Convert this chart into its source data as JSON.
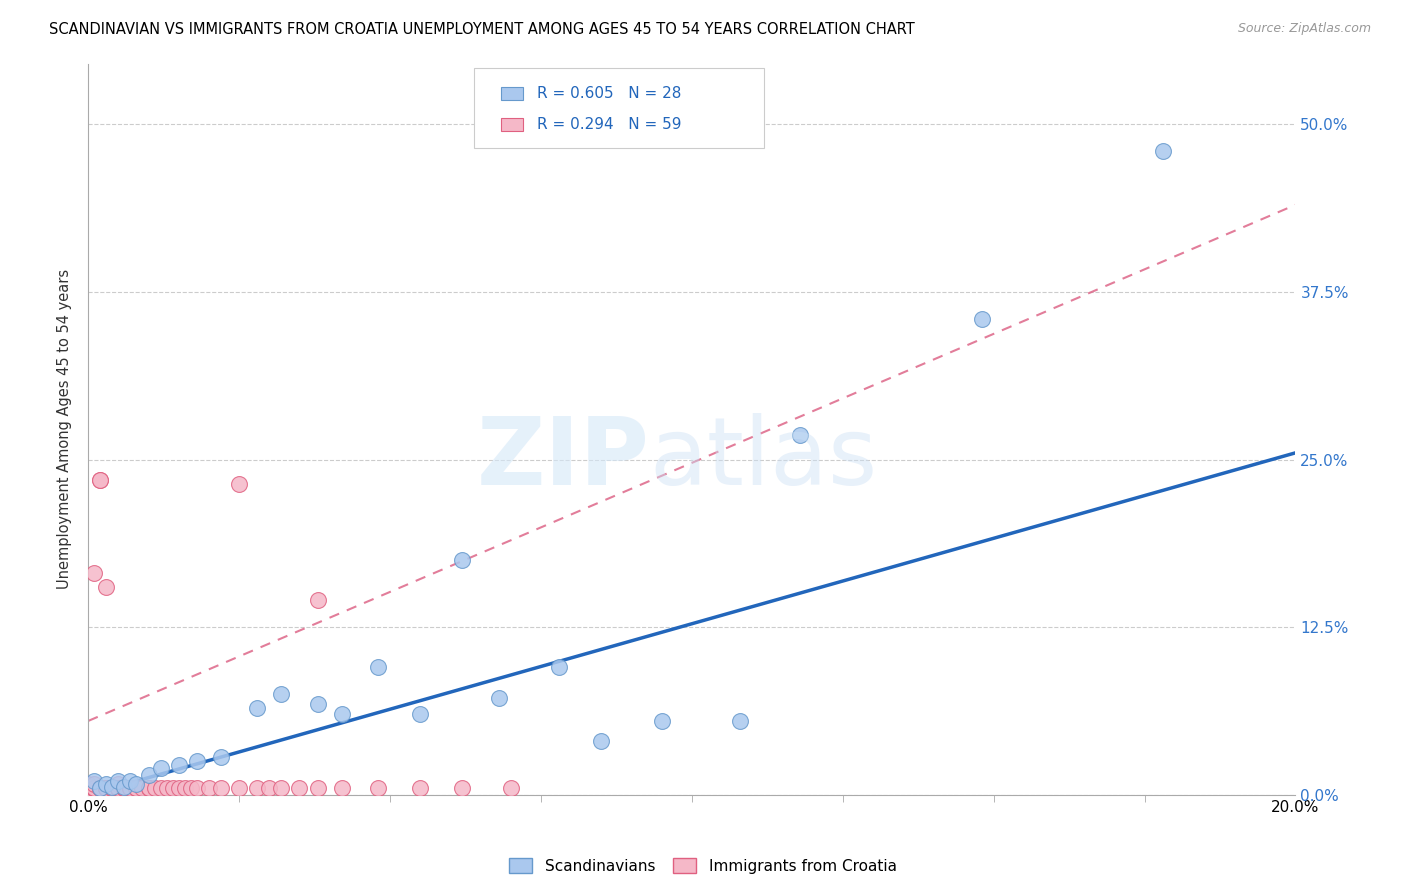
{
  "title": "SCANDINAVIAN VS IMMIGRANTS FROM CROATIA UNEMPLOYMENT AMONG AGES 45 TO 54 YEARS CORRELATION CHART",
  "source": "Source: ZipAtlas.com",
  "ylabel": "Unemployment Among Ages 45 to 54 years",
  "ytick_labels": [
    "0.0%",
    "12.5%",
    "25.0%",
    "37.5%",
    "50.0%"
  ],
  "ytick_values": [
    0.0,
    0.125,
    0.25,
    0.375,
    0.5
  ],
  "xlim": [
    0.0,
    0.2
  ],
  "ylim": [
    0.0,
    0.545
  ],
  "legend_scandinavians": "Scandinavians",
  "legend_croatia": "Immigrants from Croatia",
  "R_scand": "R = 0.605",
  "N_scand": "N = 28",
  "R_croatia": "R = 0.294",
  "N_croatia": "N = 59",
  "scand_color": "#aac8ee",
  "scand_edge_color": "#6699cc",
  "croatia_color": "#f5b8c8",
  "croatia_edge_color": "#e06080",
  "trendline_scand_color": "#2266bb",
  "trendline_croatia_color": "#dd6688",
  "trendline_scand_x0": 0.0,
  "trendline_scand_y0": 0.0,
  "trendline_scand_x1": 0.2,
  "trendline_scand_y1": 0.255,
  "trendline_croatia_x0": 0.0,
  "trendline_croatia_y0": 0.055,
  "trendline_croatia_x1": 0.2,
  "trendline_croatia_y1": 0.44,
  "scandinavians_x": [
    0.001,
    0.002,
    0.003,
    0.004,
    0.005,
    0.006,
    0.007,
    0.008,
    0.01,
    0.012,
    0.015,
    0.018,
    0.022,
    0.028,
    0.032,
    0.038,
    0.042,
    0.048,
    0.055,
    0.062,
    0.068,
    0.078,
    0.085,
    0.095,
    0.108,
    0.118,
    0.148,
    0.178
  ],
  "scandinavians_y": [
    0.01,
    0.005,
    0.008,
    0.006,
    0.01,
    0.006,
    0.01,
    0.008,
    0.015,
    0.02,
    0.022,
    0.025,
    0.028,
    0.065,
    0.075,
    0.068,
    0.06,
    0.095,
    0.06,
    0.175,
    0.072,
    0.095,
    0.04,
    0.055,
    0.055,
    0.268,
    0.355,
    0.48
  ],
  "croatia_x": [
    0.0,
    0.0,
    0.001,
    0.001,
    0.001,
    0.001,
    0.001,
    0.002,
    0.002,
    0.002,
    0.003,
    0.003,
    0.003,
    0.003,
    0.004,
    0.004,
    0.004,
    0.005,
    0.005,
    0.005,
    0.005,
    0.005,
    0.006,
    0.006,
    0.006,
    0.007,
    0.007,
    0.008,
    0.008,
    0.009,
    0.01,
    0.01,
    0.011,
    0.012,
    0.013,
    0.014,
    0.015,
    0.016,
    0.017,
    0.018,
    0.02,
    0.022,
    0.025,
    0.028,
    0.03,
    0.032,
    0.035,
    0.038,
    0.042,
    0.048,
    0.055,
    0.062,
    0.07,
    0.002,
    0.003,
    0.025,
    0.038,
    0.001,
    0.002
  ],
  "croatia_y": [
    0.005,
    0.008,
    0.005,
    0.005,
    0.005,
    0.005,
    0.008,
    0.005,
    0.005,
    0.005,
    0.005,
    0.005,
    0.005,
    0.005,
    0.005,
    0.005,
    0.005,
    0.005,
    0.005,
    0.005,
    0.008,
    0.005,
    0.005,
    0.005,
    0.005,
    0.005,
    0.005,
    0.005,
    0.005,
    0.005,
    0.005,
    0.005,
    0.005,
    0.005,
    0.005,
    0.005,
    0.005,
    0.005,
    0.005,
    0.005,
    0.005,
    0.005,
    0.005,
    0.005,
    0.005,
    0.005,
    0.005,
    0.005,
    0.005,
    0.005,
    0.005,
    0.005,
    0.005,
    0.235,
    0.155,
    0.232,
    0.145,
    0.165,
    0.235
  ]
}
